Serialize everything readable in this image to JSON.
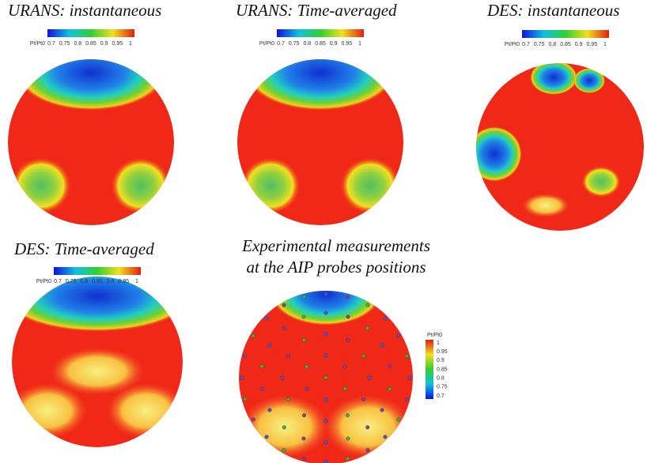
{
  "panels": [
    {
      "title": [
        "URANS: instantaneous"
      ],
      "colorbar": {
        "label": "Pt/Pt0",
        "ticks": [
          "0.7",
          "0.75",
          "0.8",
          "0.85",
          "0.9",
          "0.95",
          "1"
        ]
      }
    },
    {
      "title": [
        "URANS: Time-averaged"
      ],
      "colorbar": {
        "label": "Pt/Pt0",
        "ticks": [
          "0.7",
          "0.75",
          "0.8",
          "0.85",
          "0.9",
          "0.95",
          "1"
        ]
      }
    },
    {
      "title": [
        "DES: instantaneous"
      ],
      "colorbar": {
        "label": "Pt/Pt0",
        "ticks": [
          "0.7",
          "0.75",
          "0.8",
          "0.85",
          "0.9",
          "0.95",
          "1"
        ]
      }
    },
    {
      "title": [
        "DES: Time-averaged"
      ],
      "colorbar": {
        "label": "Pt/Pt0",
        "ticks": [
          "0.7",
          "0.75",
          "0.8",
          "0.85",
          "0.9",
          "0.95",
          "1"
        ]
      }
    },
    {
      "title": [
        "Experimental measurements",
        "at the AIP probes positions"
      ],
      "colorbar": {
        "label": "Pt/Pt0",
        "ticks": [
          "1",
          "0.95",
          "0.9",
          "0.85",
          "0.8",
          "0.75",
          "0.7"
        ]
      }
    }
  ]
}
